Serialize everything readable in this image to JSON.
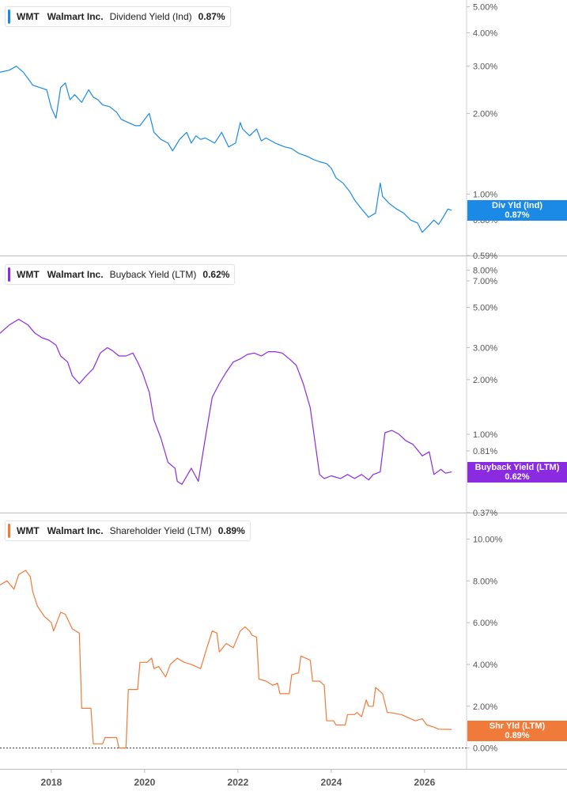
{
  "chart_data": [
    {
      "type": "line",
      "scale": "log",
      "ticker": "WMT",
      "company": "Walmart Inc.",
      "metric": "Dividend Yield (Ind)",
      "current_value": "0.87%",
      "tag_label": "Div Yld (Ind)",
      "tag_value": "0.87%",
      "color": "#1a8ae6",
      "ylim": [
        0.59,
        5.3
      ],
      "y_ticks": [
        5,
        4,
        3,
        2,
        1,
        0.8,
        0.59
      ],
      "y_tick_labels": [
        "5.00%",
        "4.00%",
        "3.00%",
        "2.00%",
        "1.00%",
        "0.80%",
        "0.59%"
      ],
      "series": [
        {
          "x": [
            2016.9,
            2017.1,
            2017.25,
            2017.4,
            2017.5,
            2017.6,
            2017.75,
            2017.9,
            2018.0,
            2018.1,
            2018.2,
            2018.3,
            2018.4,
            2018.5,
            2018.65,
            2018.8,
            2018.9,
            2019.0,
            2019.1,
            2019.25,
            2019.4,
            2019.5,
            2019.65,
            2019.8,
            2019.9,
            2020.0,
            2020.1,
            2020.2,
            2020.35,
            2020.5,
            2020.6,
            2020.75,
            2020.9,
            2021.0,
            2021.1,
            2021.2,
            2021.3,
            2021.5,
            2021.65,
            2021.8,
            2021.95,
            2022.05,
            2022.1,
            2022.25,
            2022.4,
            2022.5,
            2022.6,
            2022.8,
            2023.0,
            2023.15,
            2023.3,
            2023.5,
            2023.6,
            2023.75,
            2023.9,
            2024.0,
            2024.1,
            2024.25,
            2024.4,
            2024.5,
            2024.65,
            2024.8,
            2024.95,
            2025.05,
            2025.1,
            2025.25,
            2025.4,
            2025.55,
            2025.7,
            2025.85,
            2025.95,
            2026.05,
            2026.2,
            2026.3,
            2026.4,
            2026.5,
            2026.58
          ],
          "values": [
            2.85,
            2.9,
            3.0,
            2.85,
            2.7,
            2.55,
            2.5,
            2.45,
            2.1,
            1.92,
            2.5,
            2.6,
            2.25,
            2.35,
            2.2,
            2.45,
            2.3,
            2.25,
            2.15,
            2.12,
            2.02,
            1.9,
            1.85,
            1.8,
            1.8,
            1.9,
            2.0,
            1.7,
            1.6,
            1.55,
            1.45,
            1.6,
            1.7,
            1.55,
            1.65,
            1.6,
            1.62,
            1.55,
            1.7,
            1.5,
            1.55,
            1.85,
            1.75,
            1.65,
            1.75,
            1.58,
            1.62,
            1.55,
            1.5,
            1.48,
            1.42,
            1.38,
            1.35,
            1.32,
            1.3,
            1.25,
            1.15,
            1.1,
            1.02,
            0.95,
            0.88,
            0.82,
            0.85,
            1.1,
            0.98,
            0.92,
            0.88,
            0.85,
            0.8,
            0.78,
            0.72,
            0.75,
            0.8,
            0.77,
            0.82,
            0.88,
            0.87
          ]
        }
      ]
    },
    {
      "type": "line",
      "scale": "log",
      "ticker": "WMT",
      "company": "Walmart Inc.",
      "metric": "Buyback Yield (LTM)",
      "current_value": "0.62%",
      "tag_label": "Buyback Yield (LTM)",
      "tag_value": "0.62%",
      "color": "#8a2be2",
      "ylim": [
        0.37,
        9.0
      ],
      "y_ticks": [
        8,
        7,
        5,
        3,
        2,
        1,
        0.81,
        0.37
      ],
      "y_tick_labels": [
        "8.00%",
        "7.00%",
        "5.00%",
        "3.00%",
        "2.00%",
        "1.00%",
        "0.81%",
        "0.37%"
      ],
      "series": [
        {
          "x": [
            2016.9,
            2017.1,
            2017.3,
            2017.5,
            2017.65,
            2017.8,
            2017.95,
            2018.1,
            2018.2,
            2018.35,
            2018.45,
            2018.6,
            2018.75,
            2018.9,
            2019.05,
            2019.2,
            2019.3,
            2019.45,
            2019.6,
            2019.75,
            2019.85,
            2019.95,
            2020.1,
            2020.2,
            2020.35,
            2020.5,
            2020.65,
            2020.7,
            2020.8,
            2021.0,
            2021.15,
            2021.3,
            2021.45,
            2021.6,
            2021.75,
            2021.9,
            2022.05,
            2022.2,
            2022.35,
            2022.5,
            2022.65,
            2022.8,
            2022.95,
            2023.1,
            2023.25,
            2023.4,
            2023.55,
            2023.75,
            2023.85,
            2024.0,
            2024.2,
            2024.35,
            2024.5,
            2024.65,
            2024.8,
            2024.9,
            2025.05,
            2025.15,
            2025.3,
            2025.45,
            2025.6,
            2025.75,
            2025.85,
            2025.95,
            2026.1,
            2026.2,
            2026.35,
            2026.45,
            2026.58
          ],
          "values": [
            3.6,
            4.0,
            4.3,
            4.0,
            3.6,
            3.4,
            3.3,
            3.1,
            2.7,
            2.5,
            2.1,
            1.9,
            2.1,
            2.3,
            2.8,
            3.0,
            2.9,
            2.7,
            2.7,
            2.8,
            2.5,
            2.2,
            1.7,
            1.2,
            0.95,
            0.7,
            0.65,
            0.55,
            0.53,
            0.65,
            0.55,
            0.95,
            1.6,
            1.9,
            2.2,
            2.5,
            2.6,
            2.75,
            2.8,
            2.7,
            2.85,
            2.85,
            2.8,
            2.6,
            2.4,
            1.9,
            1.4,
            0.6,
            0.57,
            0.59,
            0.57,
            0.6,
            0.57,
            0.6,
            0.56,
            0.6,
            0.62,
            1.02,
            1.05,
            1.0,
            0.92,
            0.88,
            0.82,
            0.76,
            0.8,
            0.6,
            0.64,
            0.61,
            0.62
          ]
        }
      ]
    },
    {
      "type": "line",
      "scale": "linear",
      "ticker": "WMT",
      "company": "Walmart Inc.",
      "metric": "Shareholder Yield (LTM)",
      "current_value": "0.89%",
      "tag_label": "Shr Yld (LTM)",
      "tag_value": "0.89%",
      "color": "#f07a3a",
      "ylim": [
        -1.0,
        11.0
      ],
      "y_ticks": [
        10,
        8,
        6,
        4,
        2,
        0
      ],
      "y_tick_labels": [
        "10.00%",
        "8.00%",
        "6.00%",
        "4.00%",
        "2.00%",
        "0.00%"
      ],
      "baseline": 0,
      "series": [
        {
          "x": [
            2016.9,
            2017.05,
            2017.2,
            2017.3,
            2017.45,
            2017.55,
            2017.6,
            2017.7,
            2017.85,
            2018.0,
            2018.05,
            2018.2,
            2018.3,
            2018.45,
            2018.6,
            2018.65,
            2018.85,
            2018.9,
            2019.1,
            2019.15,
            2019.4,
            2019.45,
            2019.6,
            2019.65,
            2019.85,
            2019.9,
            2020.05,
            2020.15,
            2020.2,
            2020.3,
            2020.45,
            2020.55,
            2020.7,
            2020.85,
            2021.0,
            2021.2,
            2021.35,
            2021.45,
            2021.55,
            2021.6,
            2021.75,
            2021.9,
            2022.05,
            2022.15,
            2022.25,
            2022.3,
            2022.4,
            2022.45,
            2022.6,
            2022.75,
            2022.85,
            2022.9,
            2023.1,
            2023.15,
            2023.3,
            2023.35,
            2023.55,
            2023.6,
            2023.75,
            2023.85,
            2023.9,
            2024.05,
            2024.1,
            2024.3,
            2024.35,
            2024.5,
            2024.55,
            2024.65,
            2024.75,
            2024.8,
            2024.9,
            2024.95,
            2025.1,
            2025.2,
            2025.25,
            2025.5,
            2025.7,
            2025.8,
            2025.95,
            2026.05,
            2026.2,
            2026.3,
            2026.58
          ],
          "values": [
            7.8,
            8.0,
            7.6,
            8.3,
            8.5,
            8.2,
            7.5,
            6.8,
            6.3,
            6.0,
            5.6,
            6.5,
            6.4,
            5.7,
            5.5,
            1.9,
            1.9,
            0.2,
            0.2,
            0.5,
            0.5,
            0.0,
            0.0,
            2.8,
            2.8,
            4.1,
            4.1,
            4.3,
            3.8,
            3.9,
            3.4,
            4.0,
            4.3,
            4.1,
            4.0,
            3.8,
            4.9,
            5.6,
            5.5,
            4.6,
            5.0,
            4.8,
            5.6,
            5.8,
            5.6,
            5.4,
            5.3,
            3.3,
            3.2,
            3.0,
            3.1,
            2.6,
            2.6,
            3.5,
            3.6,
            4.4,
            4.2,
            3.2,
            3.2,
            3.0,
            1.3,
            1.3,
            1.1,
            1.1,
            1.6,
            1.6,
            1.7,
            1.5,
            2.3,
            2.0,
            2.0,
            2.9,
            2.6,
            1.7,
            1.7,
            1.6,
            1.4,
            1.3,
            1.4,
            1.1,
            1.0,
            0.9,
            0.89
          ]
        }
      ]
    }
  ],
  "x_axis": {
    "ticks": [
      2018,
      2020,
      2022,
      2024,
      2026
    ],
    "tick_labels": [
      "2018",
      "2020",
      "2022",
      "2024",
      "2026"
    ],
    "range": [
      2016.9,
      2026.9
    ]
  }
}
